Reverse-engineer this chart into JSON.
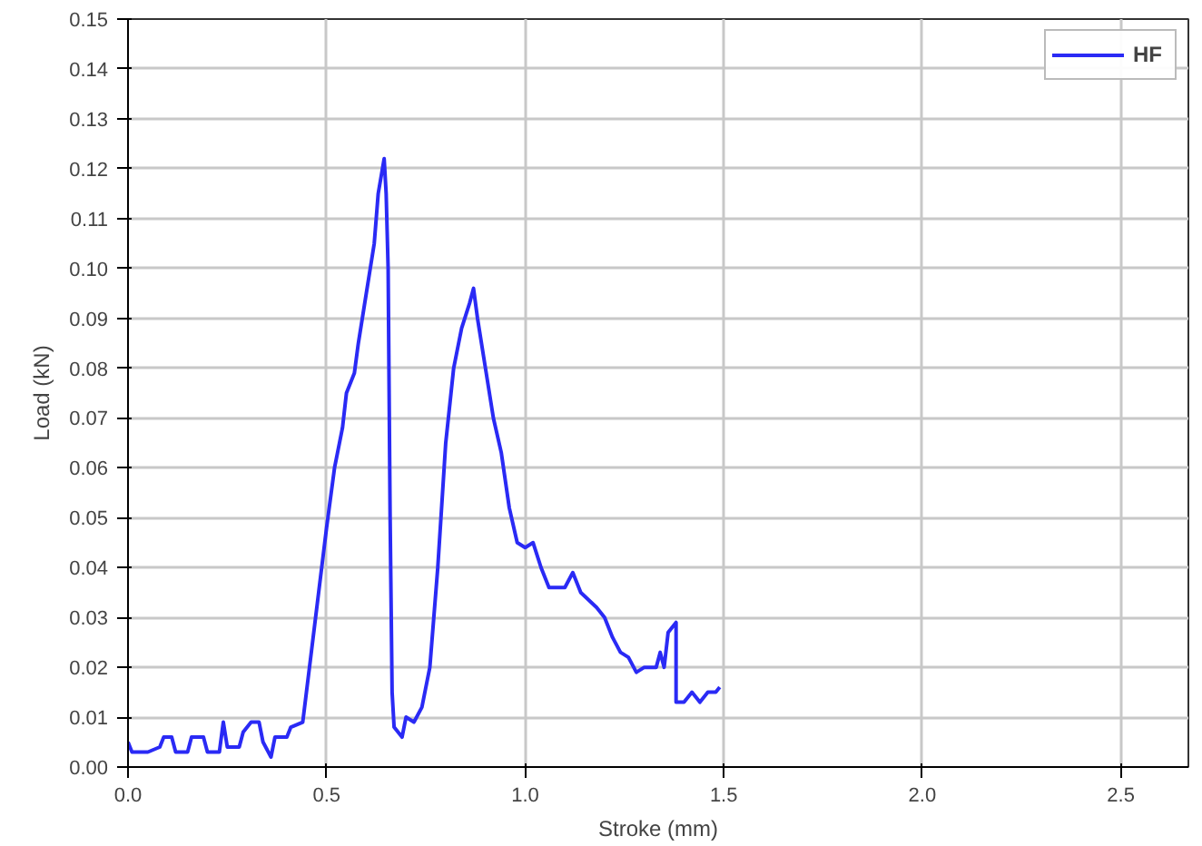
{
  "chart_data": {
    "type": "line",
    "xlabel": "Stroke (mm)",
    "ylabel": "Load (kN)",
    "x": [
      0.0,
      0.01,
      0.05,
      0.08,
      0.09,
      0.11,
      0.12,
      0.15,
      0.16,
      0.19,
      0.2,
      0.23,
      0.24,
      0.25,
      0.28,
      0.29,
      0.31,
      0.33,
      0.34,
      0.36,
      0.37,
      0.4,
      0.41,
      0.44,
      0.46,
      0.48,
      0.5,
      0.52,
      0.54,
      0.55,
      0.57,
      0.58,
      0.6,
      0.62,
      0.63,
      0.645,
      0.65,
      0.655,
      0.66,
      0.665,
      0.67,
      0.69,
      0.7,
      0.72,
      0.74,
      0.76,
      0.78,
      0.8,
      0.82,
      0.84,
      0.86,
      0.87,
      0.88,
      0.9,
      0.92,
      0.94,
      0.96,
      0.98,
      1.0,
      1.02,
      1.04,
      1.06,
      1.1,
      1.12,
      1.14,
      1.18,
      1.2,
      1.22,
      1.24,
      1.26,
      1.28,
      1.3,
      1.33,
      1.34,
      1.35,
      1.36,
      1.38,
      1.38,
      1.4,
      1.42,
      1.44,
      1.46,
      1.48,
      1.49
    ],
    "series": [
      {
        "name": "HF",
        "color": "#2a2af5",
        "values": [
          0.005,
          0.003,
          0.003,
          0.004,
          0.006,
          0.006,
          0.003,
          0.003,
          0.006,
          0.006,
          0.003,
          0.003,
          0.009,
          0.004,
          0.004,
          0.007,
          0.009,
          0.009,
          0.005,
          0.002,
          0.006,
          0.006,
          0.008,
          0.009,
          0.022,
          0.035,
          0.048,
          0.06,
          0.068,
          0.075,
          0.079,
          0.085,
          0.095,
          0.105,
          0.115,
          0.122,
          0.115,
          0.1,
          0.05,
          0.015,
          0.008,
          0.006,
          0.01,
          0.009,
          0.012,
          0.02,
          0.04,
          0.065,
          0.08,
          0.088,
          0.093,
          0.096,
          0.09,
          0.08,
          0.07,
          0.063,
          0.052,
          0.045,
          0.044,
          0.045,
          0.04,
          0.036,
          0.036,
          0.039,
          0.035,
          0.032,
          0.03,
          0.026,
          0.023,
          0.022,
          0.019,
          0.02,
          0.02,
          0.023,
          0.02,
          0.027,
          0.029,
          0.013,
          0.013,
          0.015,
          0.013,
          0.015,
          0.015,
          0.016
        ]
      }
    ],
    "xlim": [
      0,
      2.67
    ],
    "ylim": [
      0,
      0.15
    ],
    "xticks": [
      {
        "value": 0,
        "label": "0.0"
      },
      {
        "value": 0.5,
        "label": "0.5"
      },
      {
        "value": 1,
        "label": "1.0"
      },
      {
        "value": 1.5,
        "label": "1.5"
      },
      {
        "value": 2,
        "label": "2.0"
      },
      {
        "value": 2.5,
        "label": "2.5"
      }
    ],
    "yticks": [
      {
        "value": 0,
        "label": "0.00"
      },
      {
        "value": 0.01,
        "label": "0.01"
      },
      {
        "value": 0.02,
        "label": "0.02"
      },
      {
        "value": 0.03,
        "label": "0.03"
      },
      {
        "value": 0.04,
        "label": "0.04"
      },
      {
        "value": 0.05,
        "label": "0.05"
      },
      {
        "value": 0.06,
        "label": "0.06"
      },
      {
        "value": 0.07,
        "label": "0.07"
      },
      {
        "value": 0.08,
        "label": "0.08"
      },
      {
        "value": 0.09,
        "label": "0.09"
      },
      {
        "value": 0.1,
        "label": "0.10"
      },
      {
        "value": 0.11,
        "label": "0.11"
      },
      {
        "value": 0.12,
        "label": "0.12"
      },
      {
        "value": 0.13,
        "label": "0.13"
      },
      {
        "value": 0.14,
        "label": "0.14"
      },
      {
        "value": 0.15,
        "label": "0.15"
      }
    ],
    "grid": true,
    "legend": "top right",
    "line_style": "solid"
  }
}
